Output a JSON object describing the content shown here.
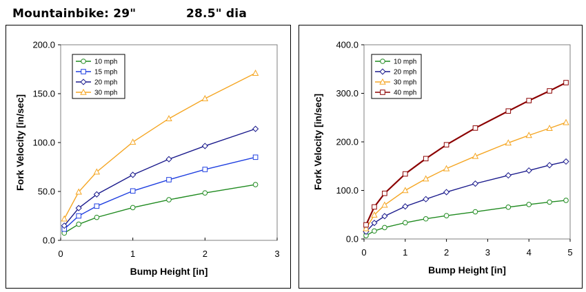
{
  "page": {
    "heading_left": "Mountainbike: 29\"",
    "heading_right": "28.5\" dia"
  },
  "chart_data": [
    {
      "type": "line",
      "xlabel": "Bump Height [in]",
      "ylabel": "Fork Velocity [in/sec]",
      "xlim": [
        0,
        3
      ],
      "ylim": [
        0,
        200
      ],
      "xticks": [
        "0",
        "1",
        "2",
        "3"
      ],
      "yticks": [
        "0.0",
        "50.0",
        "100.0",
        "150.0",
        "200.0"
      ],
      "grid": false,
      "legend_position": "top-left",
      "x": [
        0.05,
        0.25,
        0.5,
        1.0,
        1.5,
        2.0,
        2.7
      ],
      "series": [
        {
          "name": "10 mph",
          "marker": "circle",
          "color": "#1f8a1f",
          "values": [
            7.5,
            16.5,
            23.5,
            33.5,
            41.5,
            48.5,
            57.0
          ]
        },
        {
          "name": "15 mph",
          "marker": "square",
          "color": "#1f3fe0",
          "values": [
            11.5,
            25.0,
            35.0,
            50.5,
            62.0,
            72.5,
            85.0
          ]
        },
        {
          "name": "20 mph",
          "marker": "diamond",
          "color": "#1a1a8c",
          "values": [
            15.0,
            33.0,
            47.0,
            67.0,
            83.0,
            96.5,
            114.0
          ]
        },
        {
          "name": "30 mph",
          "marker": "triangle",
          "color": "#f5a623",
          "values": [
            22.0,
            49.5,
            70.0,
            100.5,
            124.5,
            145.0,
            171.0
          ]
        }
      ]
    },
    {
      "type": "line",
      "xlabel": "Bump Height [in]",
      "ylabel": "Fork Velocity [in/sec]",
      "xlim": [
        0,
        5
      ],
      "ylim": [
        0,
        400
      ],
      "xticks": [
        "0",
        "1",
        "2",
        "3",
        "4",
        "5"
      ],
      "yticks": [
        "0.0",
        "100.0",
        "200.0",
        "300.0",
        "400.0"
      ],
      "grid": false,
      "legend_position": "top-left",
      "x": [
        0.05,
        0.25,
        0.5,
        1.0,
        1.5,
        2.0,
        2.7,
        3.5,
        4.0,
        4.5,
        4.9
      ],
      "series": [
        {
          "name": "10 mph",
          "marker": "circle",
          "color": "#1f8a1f",
          "values": [
            7.0,
            16.5,
            23.5,
            33.5,
            41.5,
            48.0,
            56.0,
            65.5,
            71.0,
            76.0,
            79.5
          ]
        },
        {
          "name": "20 mph",
          "marker": "diamond",
          "color": "#1a1a8c",
          "values": [
            15.0,
            33.0,
            47.0,
            67.0,
            82.0,
            96.5,
            114.0,
            131.0,
            141.0,
            152.0,
            159.5
          ]
        },
        {
          "name": "30 mph",
          "marker": "triangle",
          "color": "#f5a623",
          "values": [
            21.5,
            49.5,
            70.0,
            100.0,
            124.0,
            145.0,
            170.5,
            198.0,
            213.5,
            228.0,
            240.0
          ]
        },
        {
          "name": "40 mph",
          "marker": "square",
          "color": "#8b0000",
          "values": [
            29.0,
            66.0,
            94.0,
            134.0,
            165.5,
            194.0,
            228.5,
            263.5,
            285.0,
            305.0,
            322.0
          ]
        }
      ]
    }
  ]
}
